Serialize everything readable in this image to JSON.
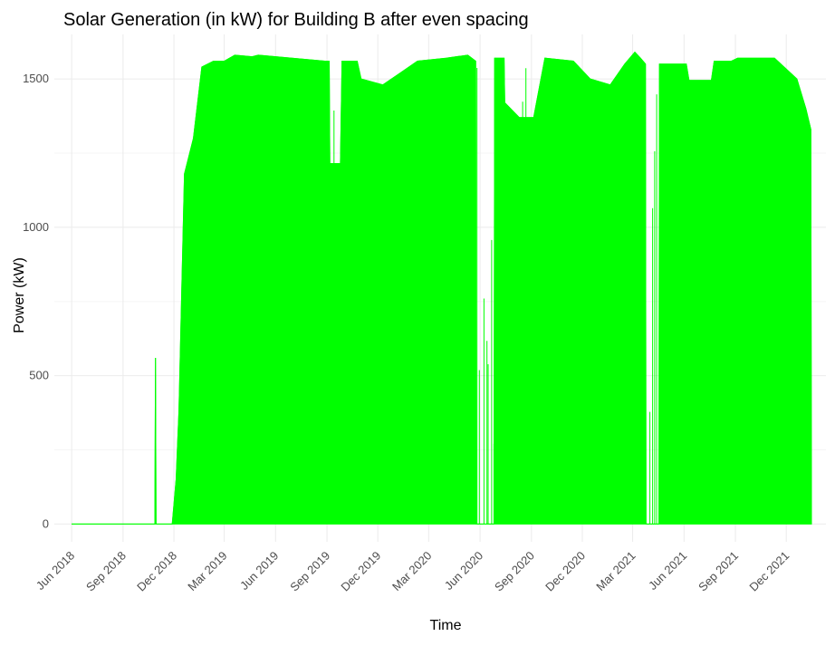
{
  "chart_data": {
    "type": "area",
    "title": "Solar Generation (in kW) for Building B after even spacing",
    "xlabel": "Time",
    "ylabel": "Power (kW)",
    "xlim": [
      "2018-05-01",
      "2022-02-10"
    ],
    "ylim": [
      -60,
      1650
    ],
    "y_ticks": [
      0,
      500,
      1000,
      1500
    ],
    "x_ticks": [
      {
        "date": "2018-06-01",
        "label": "Jun 2018"
      },
      {
        "date": "2018-09-01",
        "label": "Sep 2018"
      },
      {
        "date": "2018-12-01",
        "label": "Dec 2018"
      },
      {
        "date": "2019-03-01",
        "label": "Mar 2019"
      },
      {
        "date": "2019-06-01",
        "label": "Jun 2019"
      },
      {
        "date": "2019-09-01",
        "label": "Sep 2019"
      },
      {
        "date": "2019-12-01",
        "label": "Dec 2019"
      },
      {
        "date": "2020-03-01",
        "label": "Mar 2020"
      },
      {
        "date": "2020-06-01",
        "label": "Jun 2020"
      },
      {
        "date": "2020-09-01",
        "label": "Sep 2020"
      },
      {
        "date": "2020-12-01",
        "label": "Dec 2020"
      },
      {
        "date": "2021-03-01",
        "label": "Mar 2021"
      },
      {
        "date": "2021-06-01",
        "label": "Jun 2021"
      },
      {
        "date": "2021-09-01",
        "label": "Sep 2021"
      },
      {
        "date": "2021-12-01",
        "label": "Dec 2021"
      }
    ],
    "grid": true,
    "series_color": "#00ff00",
    "series": [
      {
        "points": [
          [
            "2018-06-01",
            0
          ],
          [
            "2018-10-28",
            0
          ],
          [
            "2018-10-29",
            560
          ],
          [
            "2018-10-30",
            0
          ],
          [
            "2018-11-28",
            0
          ],
          [
            "2018-12-05",
            150
          ],
          [
            "2018-12-10",
            380
          ],
          [
            "2018-12-20",
            1180
          ],
          [
            "2019-01-05",
            1300
          ],
          [
            "2019-01-20",
            1540
          ],
          [
            "2019-02-10",
            1560
          ],
          [
            "2019-03-01",
            1560
          ],
          [
            "2019-03-20",
            1580
          ],
          [
            "2019-04-20",
            1575
          ],
          [
            "2019-05-01",
            1580
          ],
          [
            "2019-08-28",
            1560
          ],
          [
            "2019-09-05",
            1560
          ],
          [
            "2019-09-06",
            1215
          ],
          [
            "2019-09-25",
            1215
          ],
          [
            "2019-09-28",
            1560
          ],
          [
            "2019-10-25",
            1560
          ],
          [
            "2019-11-01",
            1500
          ],
          [
            "2019-12-10",
            1480
          ],
          [
            "2020-01-10",
            1520
          ],
          [
            "2020-02-10",
            1560
          ],
          [
            "2020-04-01",
            1570
          ],
          [
            "2020-05-10",
            1580
          ],
          [
            "2020-05-24",
            1560
          ],
          [
            "2020-05-25",
            0
          ],
          [
            "2020-06-26",
            0
          ],
          [
            "2020-06-27",
            1570
          ],
          [
            "2020-07-14",
            1570
          ],
          [
            "2020-07-15",
            1420
          ],
          [
            "2020-08-10",
            1370
          ],
          [
            "2020-09-05",
            1370
          ],
          [
            "2020-09-25",
            1570
          ],
          [
            "2020-11-15",
            1560
          ],
          [
            "2020-12-15",
            1500
          ],
          [
            "2021-01-20",
            1480
          ],
          [
            "2021-02-15",
            1550
          ],
          [
            "2021-03-05",
            1590
          ],
          [
            "2021-03-15",
            1570
          ],
          [
            "2021-03-24",
            1550
          ],
          [
            "2021-03-25",
            0
          ],
          [
            "2021-04-17",
            0
          ],
          [
            "2021-04-18",
            1550
          ],
          [
            "2021-06-05",
            1550
          ],
          [
            "2021-06-10",
            1495
          ],
          [
            "2021-07-20",
            1495
          ],
          [
            "2021-07-25",
            1560
          ],
          [
            "2021-08-25",
            1560
          ],
          [
            "2021-09-05",
            1570
          ],
          [
            "2021-11-10",
            1570
          ],
          [
            "2021-12-20",
            1500
          ],
          [
            "2022-01-05",
            1400
          ],
          [
            "2022-01-14",
            1330
          ],
          [
            "2022-01-15",
            0
          ]
        ]
      }
    ]
  }
}
